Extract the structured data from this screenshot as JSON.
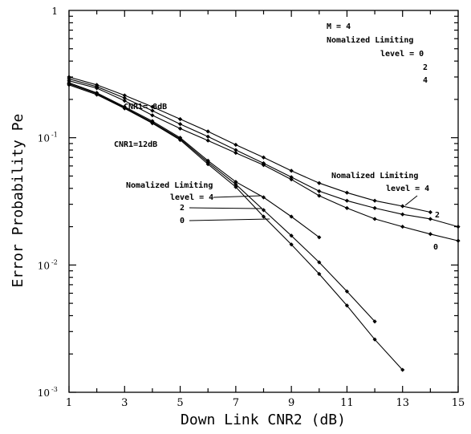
{
  "chart_data": {
    "type": "line",
    "xlabel": "Down Link CNR2 (dB)",
    "ylabel": "Error Probability Pe",
    "xlim": [
      1,
      15
    ],
    "ylim": [
      0.001,
      1
    ],
    "yscale": "log",
    "x_ticks": [
      "1",
      "3",
      "5",
      "7",
      "9",
      "11",
      "13",
      "15"
    ],
    "y_ticks": [
      {
        "base": "1",
        "exp": ""
      },
      {
        "base": "10",
        "exp": "-1"
      },
      {
        "base": "10",
        "exp": "-2"
      },
      {
        "base": "10",
        "exp": "-3"
      }
    ],
    "series": [
      {
        "group": "CNR1= 8dB",
        "level": "4",
        "x": [
          1,
          2,
          3,
          4,
          5,
          6,
          7,
          8,
          9,
          10,
          11,
          12,
          13,
          14
        ],
        "y": [
          0.3,
          0.26,
          0.215,
          0.175,
          0.14,
          0.112,
          0.088,
          0.07,
          0.055,
          0.044,
          0.037,
          0.032,
          0.029,
          0.026
        ]
      },
      {
        "group": "CNR1= 8dB",
        "level": "2",
        "x": [
          1,
          2,
          3,
          4,
          5,
          6,
          7,
          8,
          9,
          10,
          11,
          12,
          13,
          14,
          15
        ],
        "y": [
          0.29,
          0.252,
          0.205,
          0.163,
          0.128,
          0.102,
          0.08,
          0.063,
          0.049,
          0.038,
          0.032,
          0.028,
          0.025,
          0.023,
          0.02
        ]
      },
      {
        "group": "CNR1= 8dB",
        "level": "0",
        "x": [
          1,
          2,
          3,
          4,
          5,
          6,
          7,
          8,
          9,
          10,
          11,
          12,
          13,
          14,
          15
        ],
        "y": [
          0.28,
          0.245,
          0.195,
          0.15,
          0.118,
          0.095,
          0.076,
          0.061,
          0.047,
          0.035,
          0.028,
          0.023,
          0.02,
          0.0175,
          0.0155
        ]
      },
      {
        "group": "CNR1=12dB",
        "level": "4",
        "x": [
          1,
          2,
          3,
          4,
          5,
          6,
          7,
          8,
          9,
          10
        ],
        "y": [
          0.27,
          0.225,
          0.175,
          0.135,
          0.1,
          0.066,
          0.045,
          0.034,
          0.024,
          0.0165
        ]
      },
      {
        "group": "CNR1=12dB",
        "level": "2",
        "x": [
          1,
          2,
          3,
          4,
          5,
          6,
          7,
          8,
          9,
          10,
          11,
          12
        ],
        "y": [
          0.265,
          0.222,
          0.172,
          0.132,
          0.098,
          0.064,
          0.043,
          0.027,
          0.017,
          0.0105,
          0.0062,
          0.0036
        ]
      },
      {
        "group": "CNR1=12dB",
        "level": "0",
        "x": [
          1,
          2,
          3,
          4,
          5,
          6,
          7,
          8,
          9,
          10,
          11,
          12,
          13
        ],
        "y": [
          0.26,
          0.218,
          0.17,
          0.13,
          0.096,
          0.062,
          0.041,
          0.024,
          0.0145,
          0.0085,
          0.0048,
          0.0026,
          0.0015
        ]
      }
    ],
    "annotations": {
      "m": "M = 4",
      "legend_title": "Nomalized Limiting",
      "legend_level": "level = 0",
      "legend_2": "2",
      "legend_4": "4",
      "cnr1_8": "CNR1= 8dB",
      "cnr1_12": "CNR1=12dB",
      "nl_left": "Nomalized Limiting",
      "lvl_left_4": "level = 4",
      "lvl_left_2": "2",
      "lvl_left_0": "0",
      "nl_right": "Nomalized Limiting",
      "lvl_right_4": "level = 4",
      "lvl_right_2": "2",
      "lvl_right_0": "0"
    }
  }
}
